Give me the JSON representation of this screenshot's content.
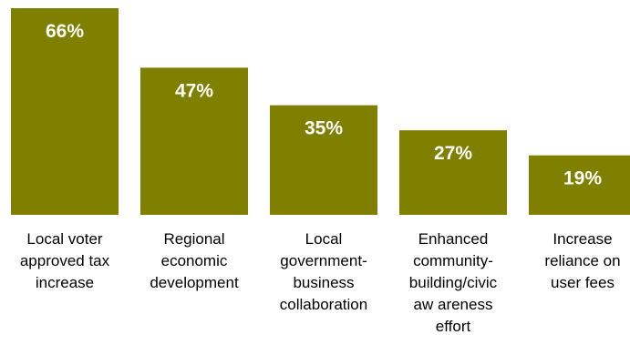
{
  "chart_data": {
    "type": "bar",
    "categories": [
      [
        "Local voter",
        "approved tax",
        "increase"
      ],
      [
        "Regional",
        "economic",
        "development"
      ],
      [
        "Local",
        "government-",
        "business",
        "collaboration"
      ],
      [
        "Enhanced",
        "community-",
        "building/civic",
        "aw areness",
        "effort"
      ],
      [
        "Increase",
        "reliance on",
        "user fees"
      ]
    ],
    "values": [
      66,
      47,
      35,
      27,
      19
    ],
    "value_labels": [
      "66%",
      "47%",
      "35%",
      "27%",
      "19%"
    ],
    "unit": "%",
    "ylim": [
      0,
      66
    ],
    "bar_color": "#808000",
    "label_color": "#ffffff",
    "grid": false,
    "legend": "none"
  }
}
